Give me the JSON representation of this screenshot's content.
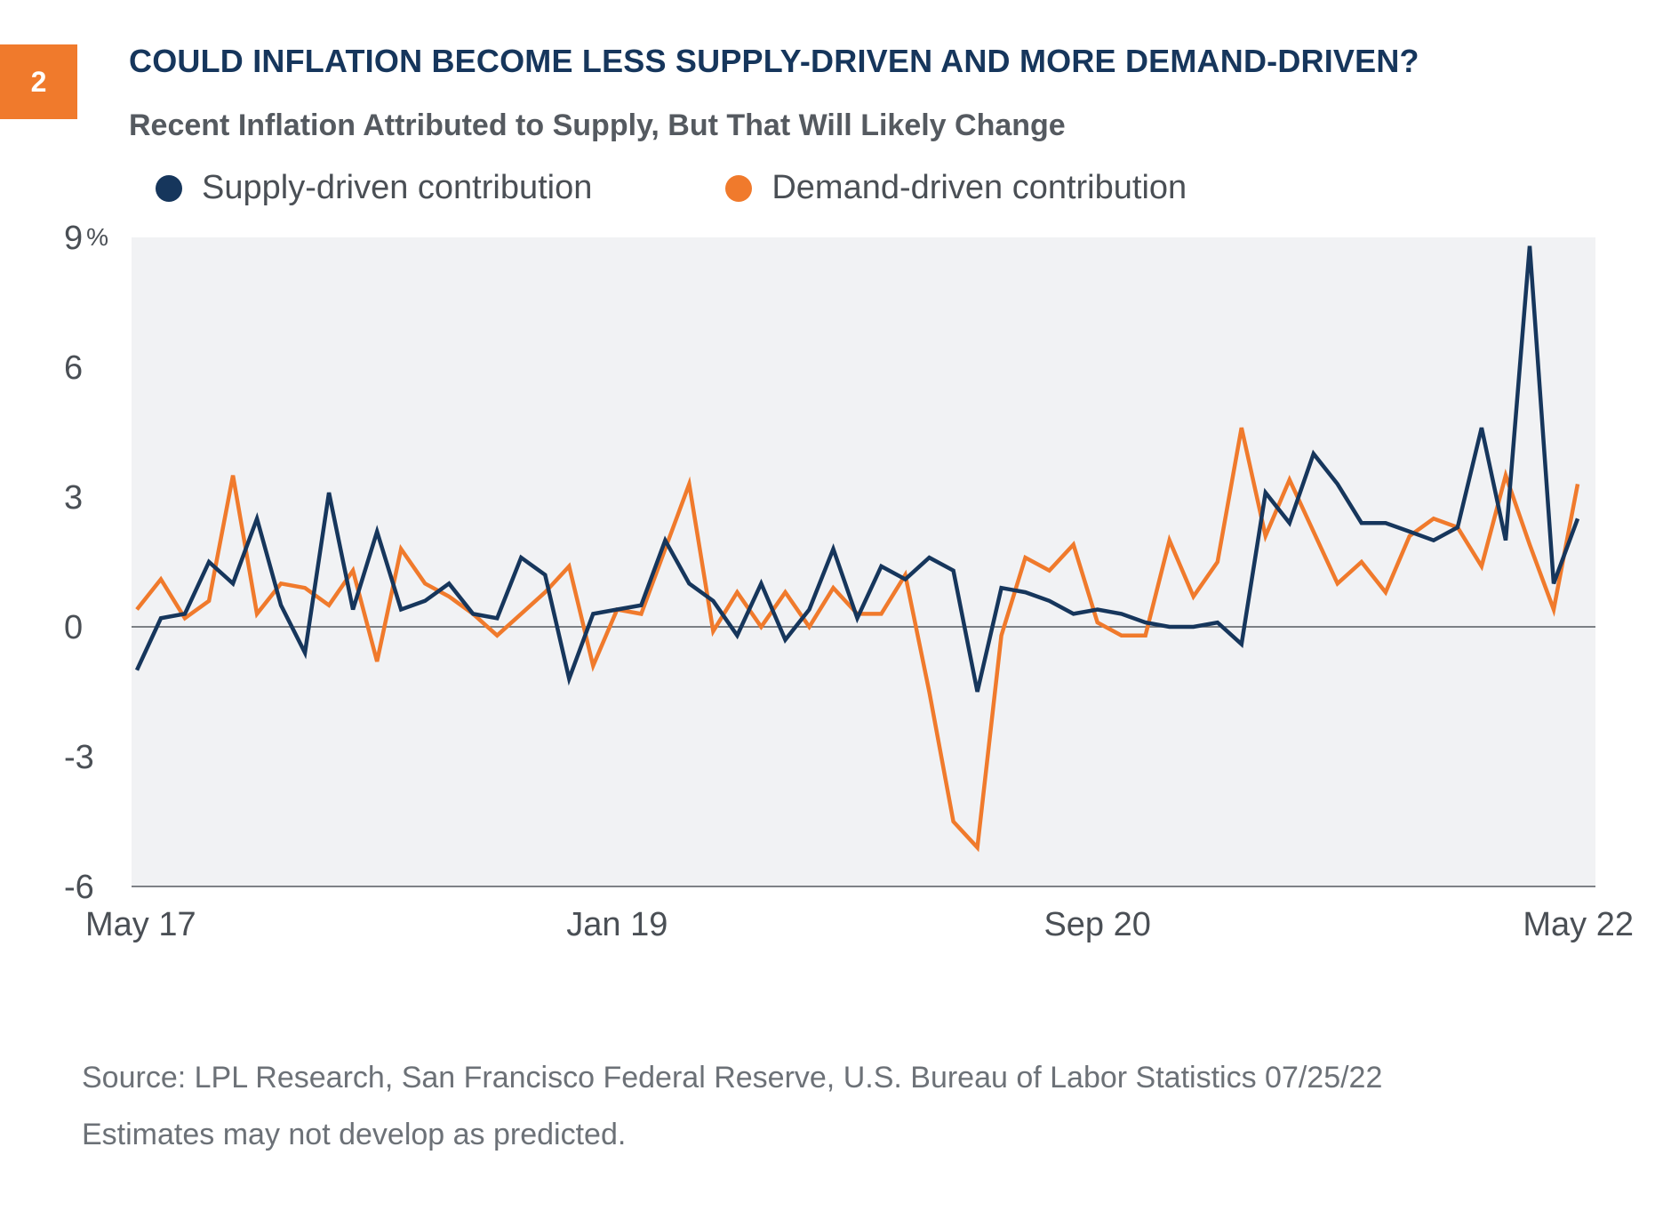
{
  "badge": "2",
  "header": {
    "title": "COULD INFLATION BECOME LESS SUPPLY-DRIVEN AND MORE DEMAND-DRIVEN?",
    "subtitle": "Recent Inflation Attributed to Supply, But That Will Likely Change"
  },
  "colors": {
    "supply": "#16365c",
    "demand": "#f07a2c",
    "plot_background": "#f1f2f4",
    "badge": "#f07a2c"
  },
  "chart_data": {
    "type": "line",
    "title": "Recent Inflation Attributed to Supply, But That Will Likely Change",
    "xlabel": "",
    "ylabel": "",
    "y_unit": "%",
    "ylim": [
      -6,
      9
    ],
    "y_ticks": [
      9,
      6,
      3,
      0,
      -3,
      -6
    ],
    "y_tick_labels": [
      "9",
      "6",
      "3",
      "0",
      "-3",
      "-6"
    ],
    "x_tick_labels": [
      "May 17",
      "Jan 19",
      "Sep 20",
      "May 22"
    ],
    "x_tick_index": [
      0,
      20,
      40,
      60
    ],
    "grid": false,
    "zero_line": true,
    "legend_position": "top",
    "series": [
      {
        "name": "Supply-driven contribution",
        "color": "#16365c",
        "values": [
          -1.0,
          0.2,
          0.3,
          1.5,
          1.0,
          2.5,
          0.5,
          -0.6,
          3.1,
          0.4,
          2.2,
          0.4,
          0.6,
          1.0,
          0.3,
          0.2,
          1.6,
          1.2,
          -1.2,
          0.3,
          0.4,
          0.5,
          2.0,
          1.0,
          0.6,
          -0.2,
          1.0,
          -0.3,
          0.4,
          1.8,
          0.2,
          1.4,
          1.1,
          1.6,
          1.3,
          -1.5,
          0.9,
          0.8,
          0.6,
          0.3,
          0.4,
          0.3,
          0.1,
          0.0,
          0.0,
          0.1,
          -0.4,
          3.1,
          2.4,
          4.0,
          3.3,
          2.4,
          2.4,
          2.2,
          2.0,
          2.3,
          4.6,
          2.0,
          8.8,
          1.0,
          2.5
        ]
      },
      {
        "name": "Demand-driven contribution",
        "color": "#f07a2c",
        "values": [
          0.4,
          1.1,
          0.2,
          0.6,
          3.5,
          0.3,
          1.0,
          0.9,
          0.5,
          1.3,
          -0.8,
          1.8,
          1.0,
          0.7,
          0.3,
          -0.2,
          0.3,
          0.8,
          1.4,
          -0.9,
          0.4,
          0.3,
          1.8,
          3.3,
          -0.1,
          0.8,
          0.0,
          0.8,
          0.0,
          0.9,
          0.3,
          0.3,
          1.2,
          -1.5,
          -4.5,
          -5.1,
          -0.2,
          1.6,
          1.3,
          1.9,
          0.1,
          -0.2,
          -0.2,
          2.0,
          0.7,
          1.5,
          4.6,
          2.1,
          3.4,
          2.2,
          1.0,
          1.5,
          0.8,
          2.1,
          2.5,
          2.3,
          1.4,
          3.5,
          1.9,
          0.4,
          3.3
        ]
      }
    ]
  },
  "source": {
    "line1": "Source: LPL Research, San Francisco Federal Reserve, U.S. Bureau of Labor Statistics  07/25/22",
    "line2": "Estimates may not develop as predicted."
  }
}
